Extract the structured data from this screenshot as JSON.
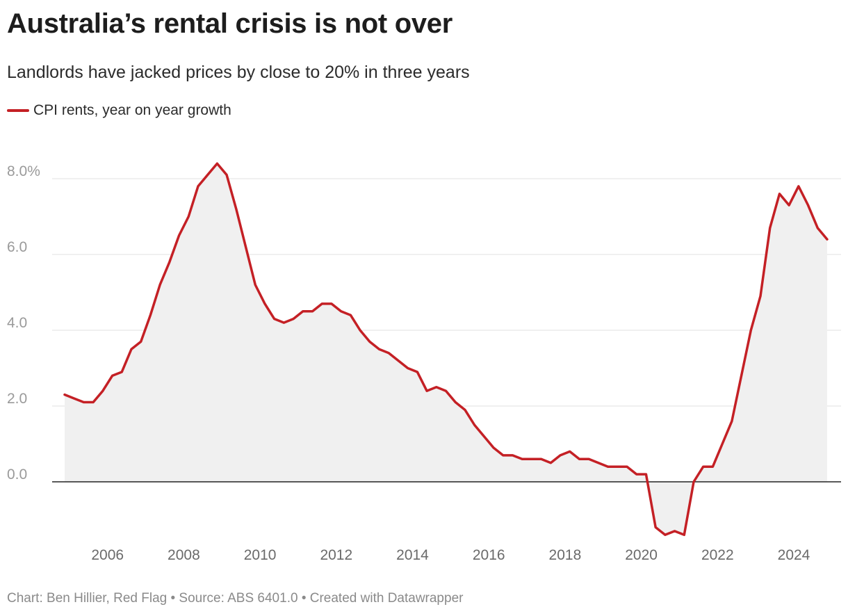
{
  "title": "Australia’s rental crisis is not over",
  "subtitle": "Landlords have jacked prices by close to 20% in three years",
  "footer": "Chart: Ben Hillier, Red Flag • Source: ABS 6401.0 • Created with Datawrapper",
  "colors": {
    "line": "#c42025",
    "area": "#f0f0f0",
    "grid": "#e2e2e2",
    "zero": "#222222"
  },
  "chart_data": {
    "type": "area",
    "series": [
      {
        "name": "CPI rents, year on year growth",
        "x": [
          2004.875,
          2005.125,
          2005.375,
          2005.625,
          2005.875,
          2006.125,
          2006.375,
          2006.625,
          2006.875,
          2007.125,
          2007.375,
          2007.625,
          2007.875,
          2008.125,
          2008.375,
          2008.625,
          2008.875,
          2009.125,
          2009.375,
          2009.625,
          2009.875,
          2010.125,
          2010.375,
          2010.625,
          2010.875,
          2011.125,
          2011.375,
          2011.625,
          2011.875,
          2012.125,
          2012.375,
          2012.625,
          2012.875,
          2013.125,
          2013.375,
          2013.625,
          2013.875,
          2014.125,
          2014.375,
          2014.625,
          2014.875,
          2015.125,
          2015.375,
          2015.625,
          2015.875,
          2016.125,
          2016.375,
          2016.625,
          2016.875,
          2017.125,
          2017.375,
          2017.625,
          2017.875,
          2018.125,
          2018.375,
          2018.625,
          2018.875,
          2019.125,
          2019.375,
          2019.625,
          2019.875,
          2020.125,
          2020.375,
          2020.625,
          2020.875,
          2021.125,
          2021.375,
          2021.625,
          2021.875,
          2022.125,
          2022.375,
          2022.625,
          2022.875,
          2023.125,
          2023.375,
          2023.625,
          2023.875,
          2024.125,
          2024.375,
          2024.625,
          2024.875
        ],
        "values": [
          2.3,
          2.2,
          2.1,
          2.1,
          2.4,
          2.8,
          2.9,
          3.5,
          3.7,
          4.4,
          5.2,
          5.8,
          6.5,
          7.0,
          7.8,
          8.1,
          8.4,
          8.1,
          7.2,
          6.2,
          5.2,
          4.7,
          4.3,
          4.2,
          4.3,
          4.5,
          4.5,
          4.7,
          4.7,
          4.5,
          4.4,
          4.0,
          3.7,
          3.5,
          3.4,
          3.2,
          3.0,
          2.9,
          2.4,
          2.5,
          2.4,
          2.1,
          1.9,
          1.5,
          1.2,
          0.9,
          0.7,
          0.7,
          0.6,
          0.6,
          0.6,
          0.5,
          0.7,
          0.8,
          0.6,
          0.6,
          0.5,
          0.4,
          0.4,
          0.4,
          0.2,
          0.2,
          -1.2,
          -1.4,
          -1.3,
          -1.4,
          0.0,
          0.4,
          0.4,
          1.0,
          1.6,
          2.8,
          4.0,
          4.9,
          6.7,
          7.6,
          7.3,
          7.8,
          7.3,
          6.7,
          6.4
        ]
      }
    ],
    "xlim": [
      2004.875,
      2024.875
    ],
    "ylim": [
      -1.5,
      8.8
    ],
    "xticks": [
      2006,
      2008,
      2010,
      2012,
      2014,
      2016,
      2018,
      2020,
      2022,
      2024
    ],
    "xtick_labels": [
      "2006",
      "2008",
      "2010",
      "2012",
      "2014",
      "2016",
      "2018",
      "2020",
      "2022",
      "2024"
    ],
    "yticks": [
      0,
      2,
      4,
      6,
      8
    ],
    "ytick_labels": [
      "0.0",
      "2.0",
      "4.0",
      "6.0",
      "8.0%"
    ],
    "grid": true,
    "legend_position": "top-left"
  }
}
